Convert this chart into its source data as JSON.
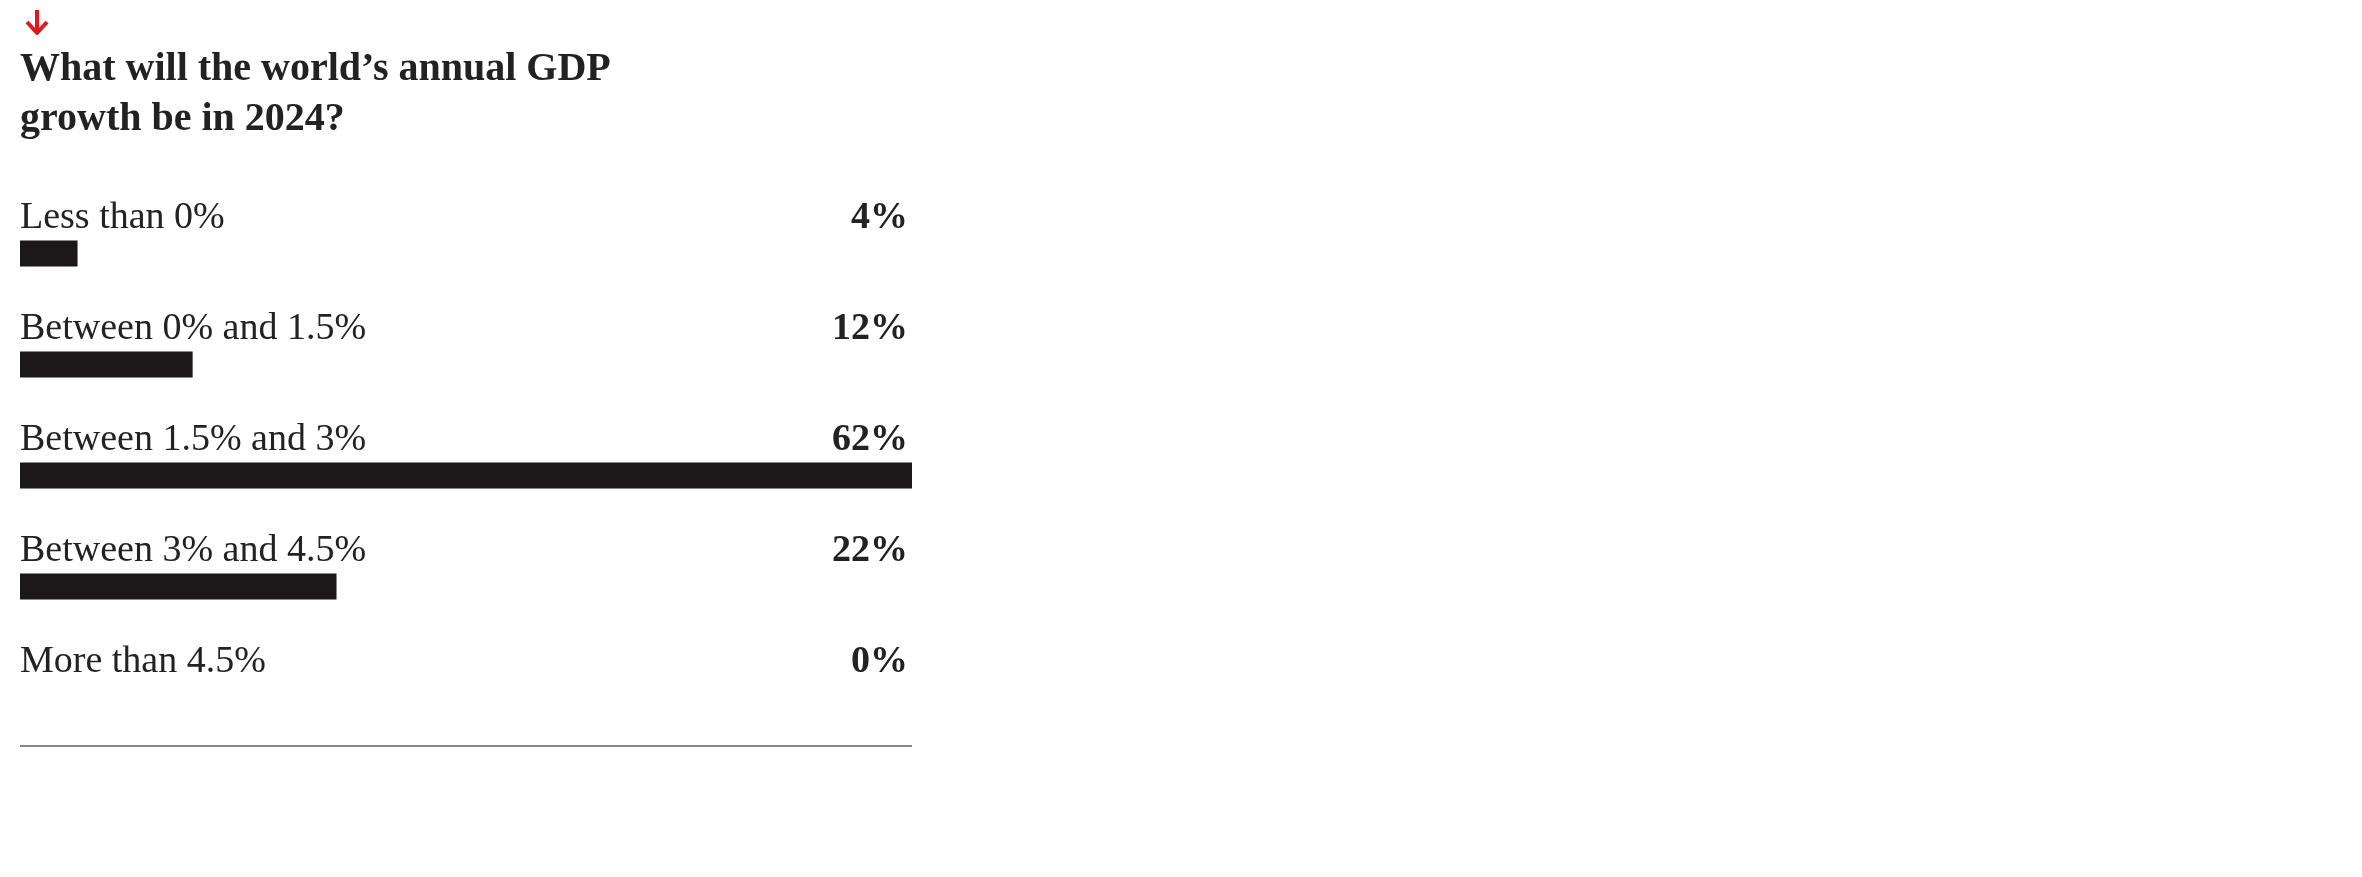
{
  "chart_data": {
    "type": "bar",
    "orientation": "horizontal",
    "title": "What will the world’s annual GDP growth be in 2024?",
    "categories": [
      "Less than 0%",
      "Between 0% and 1.5%",
      "Between 1.5% and 3%",
      "Between 3% and 4.5%",
      "More than 4.5%"
    ],
    "values": [
      4,
      12,
      62,
      22,
      0
    ],
    "value_labels": [
      "4%",
      "12%",
      "62%",
      "22%",
      "0%"
    ],
    "color": "#1c1718"
  }
}
